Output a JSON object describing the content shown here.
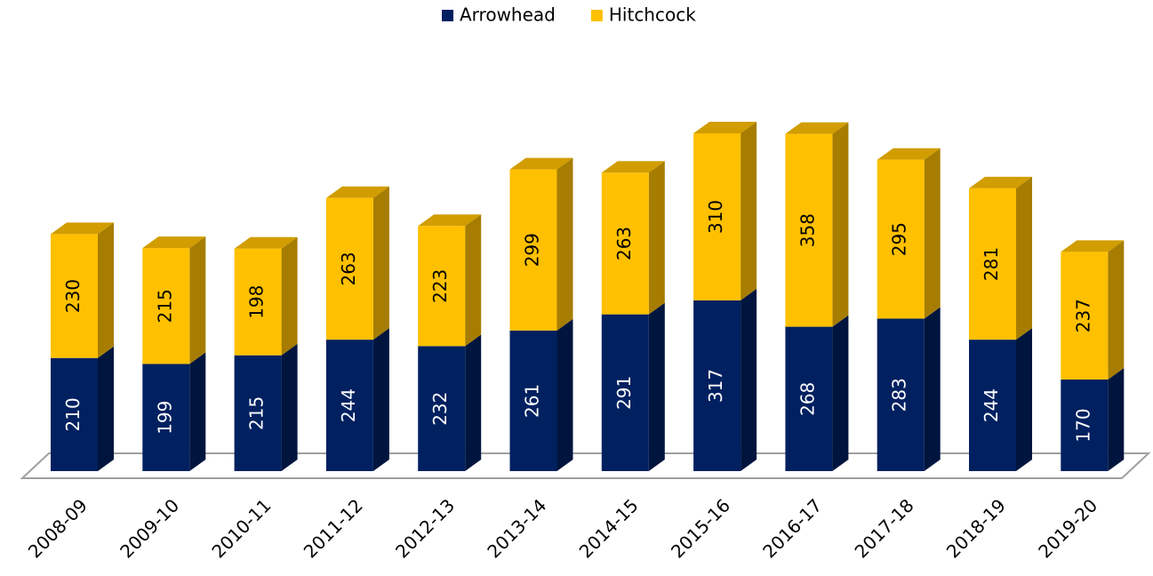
{
  "chart_data": {
    "type": "bar3d_stacked",
    "categories": [
      "2008-09",
      "2009-10",
      "2010-11",
      "2011-12",
      "2012-13",
      "2013-14",
      "2014-15",
      "2015-16",
      "2016-17",
      "2017-18",
      "2018-19",
      "2019-20"
    ],
    "series": [
      {
        "name": "Arrowhead",
        "color": "#002060",
        "values": [
          210,
          199,
          215,
          244,
          232,
          261,
          291,
          317,
          268,
          283,
          244,
          170
        ]
      },
      {
        "name": "Hitchcock",
        "color": "#ffc000",
        "values": [
          230,
          215,
          198,
          263,
          223,
          299,
          263,
          310,
          358,
          295,
          281,
          237
        ]
      }
    ],
    "legend": "top"
  }
}
